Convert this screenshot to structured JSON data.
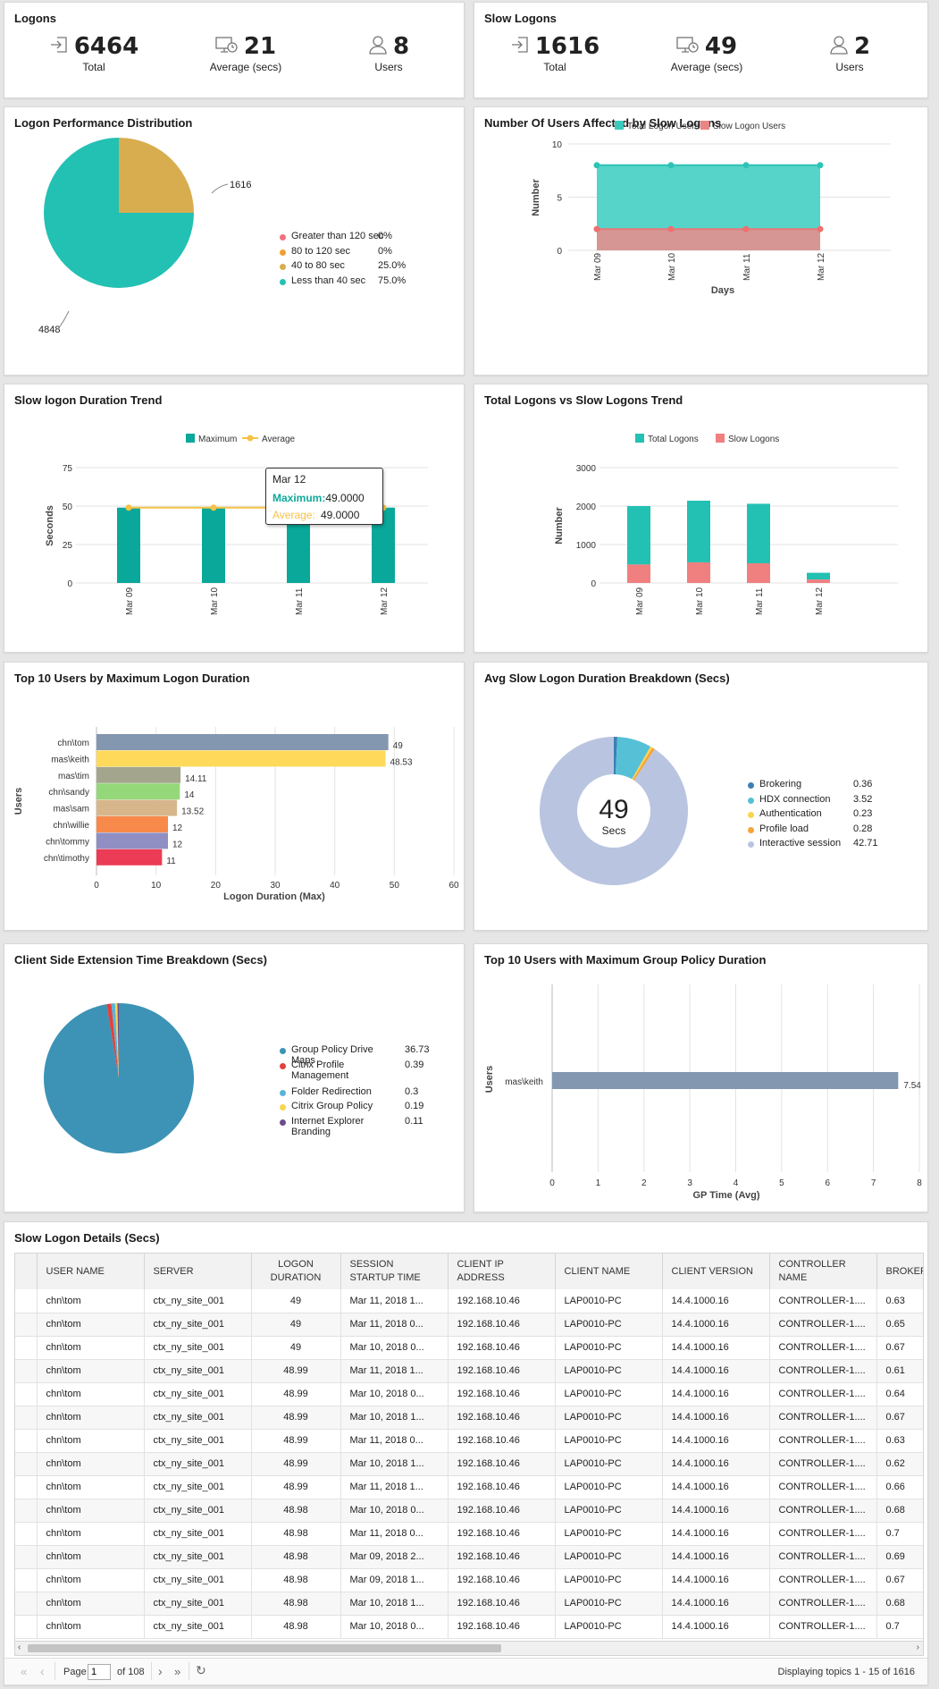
{
  "logons": {
    "title": "Logons",
    "total": "6464",
    "total_label": "Total",
    "avg": "21",
    "avg_label": "Average (secs)",
    "users": "8",
    "users_label": "Users"
  },
  "slow_logons": {
    "title": "Slow Logons",
    "total": "1616",
    "total_label": "Total",
    "avg": "49",
    "avg_label": "Average (secs)",
    "users": "2",
    "users_label": "Users"
  },
  "perf_dist": {
    "title": "Logon Performance Distribution",
    "label_a": "1616",
    "label_b": "4848",
    "legend": [
      {
        "name": "Greater than 120 sec",
        "value": "0%",
        "color": "#f0707f"
      },
      {
        "name": "80 to 120 sec",
        "value": "0%",
        "color": "#f0a030"
      },
      {
        "name": "40 to 80 sec",
        "value": "25.0%",
        "color": "#d8ad4f"
      },
      {
        "name": "Less than 40 sec",
        "value": "75.0%",
        "color": "#22c1b3"
      }
    ]
  },
  "affected": {
    "title": "Number Of Users Affected by Slow Logons",
    "legend": [
      "Total Logon Users",
      "Slow Logon Users"
    ],
    "ylabel": "Number",
    "xlabel": "Days",
    "yticks": [
      "10",
      "5",
      "0"
    ],
    "days": [
      "Mar 09",
      "Mar 10",
      "Mar 11",
      "Mar 12"
    ]
  },
  "trend": {
    "title": "Slow logon Duration Trend",
    "legend": [
      "Maximum",
      "Average"
    ],
    "ylabel": "Seconds",
    "xlabel": "Days",
    "yticks": [
      "75",
      "50",
      "25",
      "0"
    ],
    "days": [
      "Mar 09",
      "Mar 10",
      "Mar 11",
      "Mar 12"
    ],
    "tooltip": {
      "title": "Mar 12",
      "max_label": "Maximum:",
      "max_value": "49.0000",
      "avg_label": "Average:",
      "avg_value": "49.0000"
    }
  },
  "totals_trend": {
    "title": "Total Logons vs Slow Logons Trend",
    "legend": [
      "Total Logons",
      "Slow Logons"
    ],
    "ylabel": "Number",
    "xlabel": "Days",
    "yticks": [
      "3000",
      "2000",
      "1000",
      "0"
    ],
    "days": [
      "Mar 09",
      "Mar 10",
      "Mar 11",
      "Mar 12"
    ]
  },
  "top_users": {
    "title": "Top 10 Users by Maximum Logon Duration",
    "ylabel": "Users",
    "xlabel": "Logon Duration (Max)",
    "xticks": [
      "0",
      "10",
      "20",
      "30",
      "40",
      "50",
      "60"
    ],
    "users": [
      {
        "name": "chn\\tom",
        "value": "49",
        "color": "#8497b0"
      },
      {
        "name": "mas\\keith",
        "value": "48.53",
        "color": "#ffd95a"
      },
      {
        "name": "mas\\tim",
        "value": "14.11",
        "color": "#a3a68c"
      },
      {
        "name": "chn\\sandy",
        "value": "14",
        "color": "#95d87a"
      },
      {
        "name": "mas\\sam",
        "value": "13.52",
        "color": "#d8b68c"
      },
      {
        "name": "chn\\willie",
        "value": "12",
        "color": "#f7894a"
      },
      {
        "name": "chn\\tommy",
        "value": "12",
        "color": "#8f8fc4"
      },
      {
        "name": "chn\\timothy",
        "value": "11",
        "color": "#ec3b55"
      }
    ]
  },
  "breakdown": {
    "title": "Avg Slow Logon Duration Breakdown (Secs)",
    "center_value": "49",
    "center_unit": "Secs",
    "legend": [
      {
        "name": "Brokering",
        "value": "0.36",
        "color": "#3b7fb5"
      },
      {
        "name": "HDX connection",
        "value": "3.52",
        "color": "#56c0d6"
      },
      {
        "name": "Authentication",
        "value": "0.23",
        "color": "#f9d54f"
      },
      {
        "name": "Profile load",
        "value": "0.28",
        "color": "#f5a33b"
      },
      {
        "name": "Interactive session",
        "value": "42.71",
        "color": "#b9c5e0"
      }
    ]
  },
  "cse": {
    "title": "Client Side Extension Time Breakdown (Secs)",
    "legend": [
      {
        "name": "Group Policy Drive Maps",
        "value": "36.73",
        "color": "#3c93b5"
      },
      {
        "name": "Citrix Profile Management",
        "value": "0.39",
        "color": "#e0433e"
      },
      {
        "name": "Folder Redirection",
        "value": "0.3",
        "color": "#5ab4d9"
      },
      {
        "name": "Citrix Group Policy",
        "value": "0.19",
        "color": "#f9d54f"
      },
      {
        "name": "Internet Explorer Branding",
        "value": "0.11",
        "color": "#6b4d8c"
      }
    ]
  },
  "gp": {
    "title": "Top 10 Users with Maximum Group Policy Duration",
    "ylabel": "Users",
    "xlabel": "GP Time (Avg)",
    "user": "mas\\keith",
    "value": "7.54",
    "xticks": [
      "0",
      "1",
      "2",
      "3",
      "4",
      "5",
      "6",
      "7",
      "8"
    ]
  },
  "details": {
    "title": "Slow Logon Details (Secs)",
    "columns": [
      "USER NAME",
      "SERVER",
      "LOGON DURATION",
      "SESSION STARTUP TIME",
      "CLIENT IP ADDRESS",
      "CLIENT NAME",
      "CLIENT VERSION",
      "CONTROLLER NAME",
      "BROKER"
    ],
    "rows": [
      [
        "chn\\tom",
        "ctx_ny_site_001",
        "49",
        "Mar 11, 2018 1...",
        "192.168.10.46",
        "LAP0010-PC",
        "14.4.1000.16",
        "CONTROLLER-1....",
        "0.63"
      ],
      [
        "chn\\tom",
        "ctx_ny_site_001",
        "49",
        "Mar 11, 2018 0...",
        "192.168.10.46",
        "LAP0010-PC",
        "14.4.1000.16",
        "CONTROLLER-1....",
        "0.65"
      ],
      [
        "chn\\tom",
        "ctx_ny_site_001",
        "49",
        "Mar 10, 2018 0...",
        "192.168.10.46",
        "LAP0010-PC",
        "14.4.1000.16",
        "CONTROLLER-1....",
        "0.67"
      ],
      [
        "chn\\tom",
        "ctx_ny_site_001",
        "48.99",
        "Mar 11, 2018 1...",
        "192.168.10.46",
        "LAP0010-PC",
        "14.4.1000.16",
        "CONTROLLER-1....",
        "0.61"
      ],
      [
        "chn\\tom",
        "ctx_ny_site_001",
        "48.99",
        "Mar 10, 2018 0...",
        "192.168.10.46",
        "LAP0010-PC",
        "14.4.1000.16",
        "CONTROLLER-1....",
        "0.64"
      ],
      [
        "chn\\tom",
        "ctx_ny_site_001",
        "48.99",
        "Mar 10, 2018 1...",
        "192.168.10.46",
        "LAP0010-PC",
        "14.4.1000.16",
        "CONTROLLER-1....",
        "0.67"
      ],
      [
        "chn\\tom",
        "ctx_ny_site_001",
        "48.99",
        "Mar 11, 2018 0...",
        "192.168.10.46",
        "LAP0010-PC",
        "14.4.1000.16",
        "CONTROLLER-1....",
        "0.63"
      ],
      [
        "chn\\tom",
        "ctx_ny_site_001",
        "48.99",
        "Mar 10, 2018 1...",
        "192.168.10.46",
        "LAP0010-PC",
        "14.4.1000.16",
        "CONTROLLER-1....",
        "0.62"
      ],
      [
        "chn\\tom",
        "ctx_ny_site_001",
        "48.99",
        "Mar 11, 2018 1...",
        "192.168.10.46",
        "LAP0010-PC",
        "14.4.1000.16",
        "CONTROLLER-1....",
        "0.66"
      ],
      [
        "chn\\tom",
        "ctx_ny_site_001",
        "48.98",
        "Mar 10, 2018 0...",
        "192.168.10.46",
        "LAP0010-PC",
        "14.4.1000.16",
        "CONTROLLER-1....",
        "0.68"
      ],
      [
        "chn\\tom",
        "ctx_ny_site_001",
        "48.98",
        "Mar 11, 2018 0...",
        "192.168.10.46",
        "LAP0010-PC",
        "14.4.1000.16",
        "CONTROLLER-1....",
        "0.7"
      ],
      [
        "chn\\tom",
        "ctx_ny_site_001",
        "48.98",
        "Mar 09, 2018 2...",
        "192.168.10.46",
        "LAP0010-PC",
        "14.4.1000.16",
        "CONTROLLER-1....",
        "0.69"
      ],
      [
        "chn\\tom",
        "ctx_ny_site_001",
        "48.98",
        "Mar 09, 2018 1...",
        "192.168.10.46",
        "LAP0010-PC",
        "14.4.1000.16",
        "CONTROLLER-1....",
        "0.67"
      ],
      [
        "chn\\tom",
        "ctx_ny_site_001",
        "48.98",
        "Mar 10, 2018 1...",
        "192.168.10.46",
        "LAP0010-PC",
        "14.4.1000.16",
        "CONTROLLER-1....",
        "0.68"
      ],
      [
        "chn\\tom",
        "ctx_ny_site_001",
        "48.98",
        "Mar 10, 2018 0...",
        "192.168.10.46",
        "LAP0010-PC",
        "14.4.1000.16",
        "CONTROLLER-1....",
        "0.7"
      ]
    ],
    "pager": {
      "page_label": "Page",
      "page_value": "1",
      "of_label": "of 108",
      "display": "Displaying topics 1 - 15 of 1616"
    }
  },
  "chart_data": [
    {
      "type": "pie",
      "title": "Logon Performance Distribution",
      "labels": [
        "Greater than 120 sec",
        "80 to 120 sec",
        "40 to 80 sec",
        "Less than 40 sec"
      ],
      "values": [
        0,
        0,
        1616,
        4848
      ]
    },
    {
      "type": "area",
      "title": "Number Of Users Affected by Slow Logons",
      "categories": [
        "Mar 09",
        "Mar 10",
        "Mar 11",
        "Mar 12"
      ],
      "ylim": [
        0,
        10
      ],
      "series": [
        {
          "name": "Total Logon Users",
          "values": [
            8,
            8,
            8,
            8
          ]
        },
        {
          "name": "Slow Logon Users",
          "values": [
            2,
            2,
            2,
            2
          ]
        }
      ]
    },
    {
      "type": "bar",
      "title": "Slow logon Duration Trend",
      "categories": [
        "Mar 09",
        "Mar 10",
        "Mar 11",
        "Mar 12"
      ],
      "ylim": [
        0,
        75
      ],
      "series": [
        {
          "name": "Maximum",
          "values": [
            49,
            49,
            49,
            49
          ]
        },
        {
          "name": "Average",
          "values": [
            49,
            49,
            49,
            49
          ]
        }
      ]
    },
    {
      "type": "bar",
      "title": "Total Logons vs Slow Logons Trend",
      "categories": [
        "Mar 09",
        "Mar 10",
        "Mar 11",
        "Mar 12"
      ],
      "ylim": [
        0,
        3000
      ],
      "stacked": true,
      "series": [
        {
          "name": "Total Logons",
          "values": [
            2000,
            2140,
            2060,
            265
          ]
        },
        {
          "name": "Slow Logons",
          "values": [
            480,
            536,
            512,
            88
          ]
        }
      ]
    },
    {
      "type": "bar",
      "title": "Top 10 Users by Maximum Logon Duration",
      "orientation": "horizontal",
      "categories": [
        "chn\\tom",
        "mas\\keith",
        "mas\\tim",
        "chn\\sandy",
        "mas\\sam",
        "chn\\willie",
        "chn\\tommy",
        "chn\\timothy"
      ],
      "values": [
        49,
        48.53,
        14.11,
        14,
        13.52,
        12,
        12,
        11
      ],
      "xlim": [
        0,
        60
      ]
    },
    {
      "type": "pie",
      "title": "Avg Slow Logon Duration Breakdown (Secs)",
      "labels": [
        "Brokering",
        "HDX connection",
        "Authentication",
        "Profile load",
        "Interactive session"
      ],
      "values": [
        0.36,
        3.52,
        0.23,
        0.28,
        42.71
      ]
    },
    {
      "type": "pie",
      "title": "Client Side Extension Time Breakdown (Secs)",
      "labels": [
        "Group Policy Drive Maps",
        "Citrix Profile Management",
        "Folder Redirection",
        "Citrix Group Policy",
        "Internet Explorer Branding"
      ],
      "values": [
        36.73,
        0.39,
        0.3,
        0.19,
        0.11
      ]
    },
    {
      "type": "bar",
      "title": "Top 10 Users with Maximum Group Policy Duration",
      "orientation": "horizontal",
      "categories": [
        "mas\\keith"
      ],
      "values": [
        7.54
      ],
      "xlim": [
        0,
        8
      ]
    }
  ]
}
